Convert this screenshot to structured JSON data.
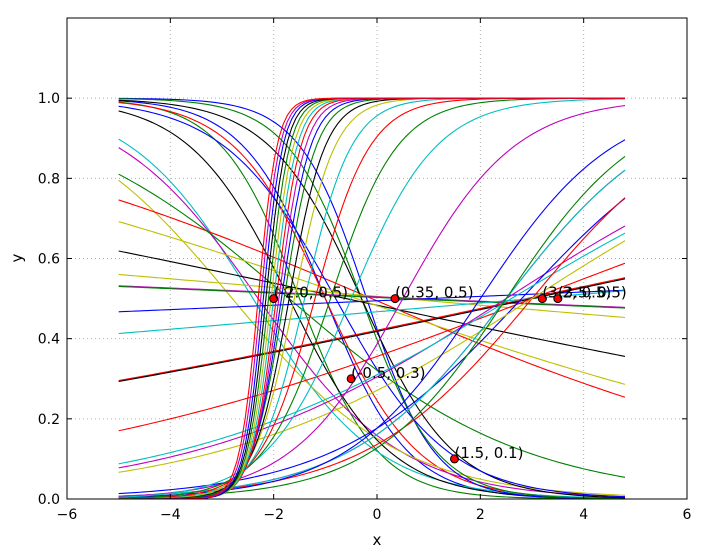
{
  "chart_data": {
    "type": "line",
    "title": "",
    "xlabel": "x",
    "ylabel": "y",
    "xlim": [
      -6,
      6
    ],
    "ylim": [
      0,
      1.2
    ],
    "x_range": [
      -5,
      4.8
    ],
    "xticks": [
      "−6",
      "−4",
      "−2",
      "0",
      "2",
      "4",
      "6"
    ],
    "yticks": [
      "0.0",
      "0.2",
      "0.4",
      "0.6",
      "0.8",
      "1.0"
    ],
    "grid": true,
    "curve_family": "logistic",
    "series": [
      {
        "color": "#0000ff",
        "k": -0.57,
        "x0": -1.0
      },
      {
        "color": "#008000",
        "k": -0.6,
        "x0": -1.5
      },
      {
        "color": "#ff0000",
        "k": -0.51,
        "x0": -1.0
      },
      {
        "color": "#00bfbf",
        "k": -0.38,
        "x0": -2.4
      },
      {
        "color": "#bf00bf",
        "k": -0.33,
        "x0": -2.3
      },
      {
        "color": "#bfbf00",
        "k": -0.28,
        "x0": -2.8
      },
      {
        "color": "#000000",
        "k": -0.47,
        "x0": -1.7
      },
      {
        "color": "#0000ff",
        "k": -0.7,
        "x0": -0.2
      },
      {
        "color": "#008000",
        "k": -0.63,
        "x0": -0.3
      },
      {
        "color": "#ff0000",
        "k": -0.1,
        "x0": -0.1
      },
      {
        "color": "#000000",
        "k": -0.51,
        "x0": -0.3
      },
      {
        "color": "#0000ff",
        "k": -0.42,
        "x0": -0.8
      },
      {
        "color": "#008000",
        "k": -0.2,
        "x0": -1.7
      },
      {
        "color": "#000000",
        "k": -0.05,
        "x0": -0.6
      },
      {
        "color": "#bfbf00",
        "k": -0.08,
        "x0": -0.4
      },
      {
        "color": "#bfbf00",
        "k": -0.02,
        "x0": 0.5
      },
      {
        "color": "#bf00bf",
        "k": -0.01,
        "x0": 0.8
      },
      {
        "color": "#0000ff",
        "k": 0.01,
        "x0": 1.0
      },
      {
        "color": "#008000",
        "k": -0.01,
        "x0": 0.5
      },
      {
        "color": "#ff0000",
        "k": 0.05,
        "x0": 2.9
      },
      {
        "color": "#00bfbf",
        "k": 0.02,
        "x0": 3.0
      },
      {
        "color": "#000000",
        "k": 0.05,
        "x0": 3.0
      },
      {
        "color": "#ff0000",
        "k": 0.09,
        "x0": 3.0
      },
      {
        "color": "#bf00bf",
        "k": 0.15,
        "x0": 2.5
      },
      {
        "color": "#0000ff",
        "k": 0.25,
        "x0": 2.8
      },
      {
        "color": "#00bfbf",
        "k": 0.14,
        "x0": 2.6
      },
      {
        "color": "#ff0000",
        "k": 0.28,
        "x0": 3.0
      },
      {
        "color": "#bfbf00",
        "k": 0.15,
        "x0": 3.0
      },
      {
        "color": "#bf00bf",
        "k": 0.3,
        "x0": 2.5
      },
      {
        "color": "#00bfbf",
        "k": 0.3,
        "x0": 2.5
      },
      {
        "color": "#008000",
        "k": 0.35,
        "x0": 2.5
      },
      {
        "color": "#0000ff",
        "k": 0.35,
        "x0": 2.0
      },
      {
        "color": "#bf00bf",
        "k": 0.42,
        "x0": 0.5
      },
      {
        "color": "#00bfbf",
        "k": 0.55,
        "x0": -0.5
      },
      {
        "color": "#008000",
        "k": 0.7,
        "x0": -0.9
      },
      {
        "color": "#ff0000",
        "k": 0.85,
        "x0": -1.2
      },
      {
        "color": "#00bfbf",
        "k": 1.0,
        "x0": -1.4
      },
      {
        "color": "#bfbf00",
        "k": 1.15,
        "x0": -1.6
      },
      {
        "color": "#000000",
        "k": 1.3,
        "x0": -1.7
      },
      {
        "color": "#008000",
        "k": 1.45,
        "x0": -1.8
      },
      {
        "color": "#0000ff",
        "k": 1.6,
        "x0": -1.85
      },
      {
        "color": "#bf00bf",
        "k": 1.75,
        "x0": -1.9
      },
      {
        "color": "#ff0000",
        "k": 1.9,
        "x0": -1.95
      },
      {
        "color": "#00bfbf",
        "k": 2.0,
        "x0": -2.0
      },
      {
        "color": "#bfbf00",
        "k": 2.1,
        "x0": -2.05
      },
      {
        "color": "#008000",
        "k": 2.2,
        "x0": -2.1
      },
      {
        "color": "#000000",
        "k": 2.3,
        "x0": -2.15
      },
      {
        "color": "#0000ff",
        "k": 2.4,
        "x0": -2.2
      },
      {
        "color": "#bf00bf",
        "k": 2.45,
        "x0": -2.25
      },
      {
        "color": "#ff0000",
        "k": 2.5,
        "x0": -2.3
      }
    ],
    "points": [
      {
        "x": -2.0,
        "y": 0.5,
        "label": "(-2.0, 0.5)"
      },
      {
        "x": 0.35,
        "y": 0.5,
        "label": "(0.35, 0.5)"
      },
      {
        "x": 3.2,
        "y": 0.5,
        "label": "(3.2, 0.5)"
      },
      {
        "x": 3.5,
        "y": 0.5,
        "label": "(3.5, 0.5)"
      },
      {
        "x": -0.5,
        "y": 0.3,
        "label": "(-0.5, 0.3)"
      },
      {
        "x": 1.5,
        "y": 0.1,
        "label": "(1.5, 0.1)"
      }
    ],
    "point_color": "#ff0000"
  }
}
